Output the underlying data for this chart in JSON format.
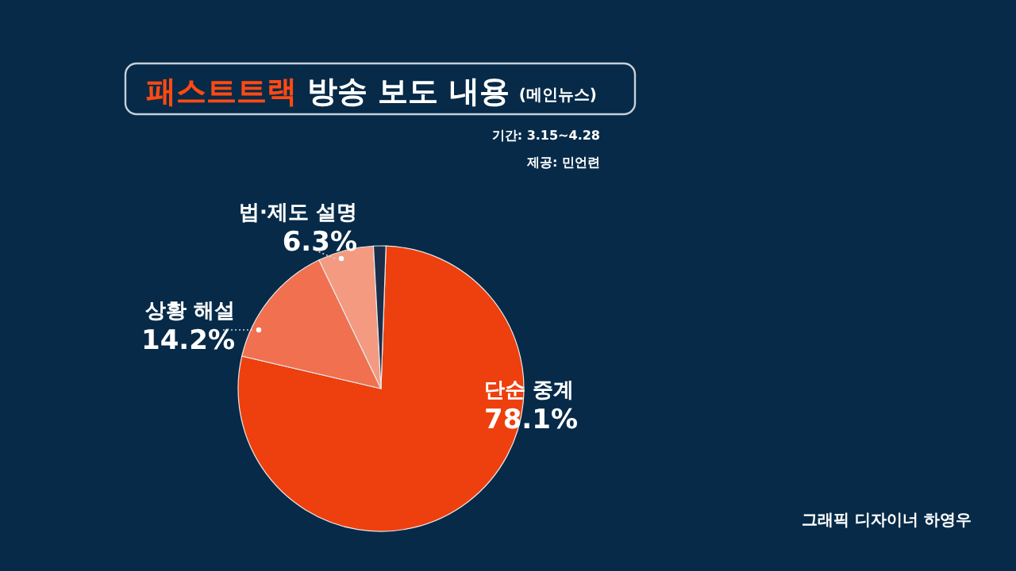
{
  "chart_data": {
    "type": "pie",
    "title": "**패스트트랙** 방송 보도 내용",
    "subtitle": "(메인뉴스)",
    "categories": [
      "단순 중계",
      "상황 해설",
      "법·제도 설명",
      null
    ],
    "values": [
      78.1,
      14.2,
      6.3,
      1.4
    ],
    "colors": [
      "#ee3f0e",
      "#f07050",
      "#f39a80",
      "#1a2e4a"
    ],
    "value_labels": [
      "78.1%",
      "14.2%",
      "6.3%",
      null
    ],
    "annotations": [
      "기간: 3.15~4.28",
      "제공: 민언련",
      "그래픽 디자이너 하영우"
    ]
  }
}
